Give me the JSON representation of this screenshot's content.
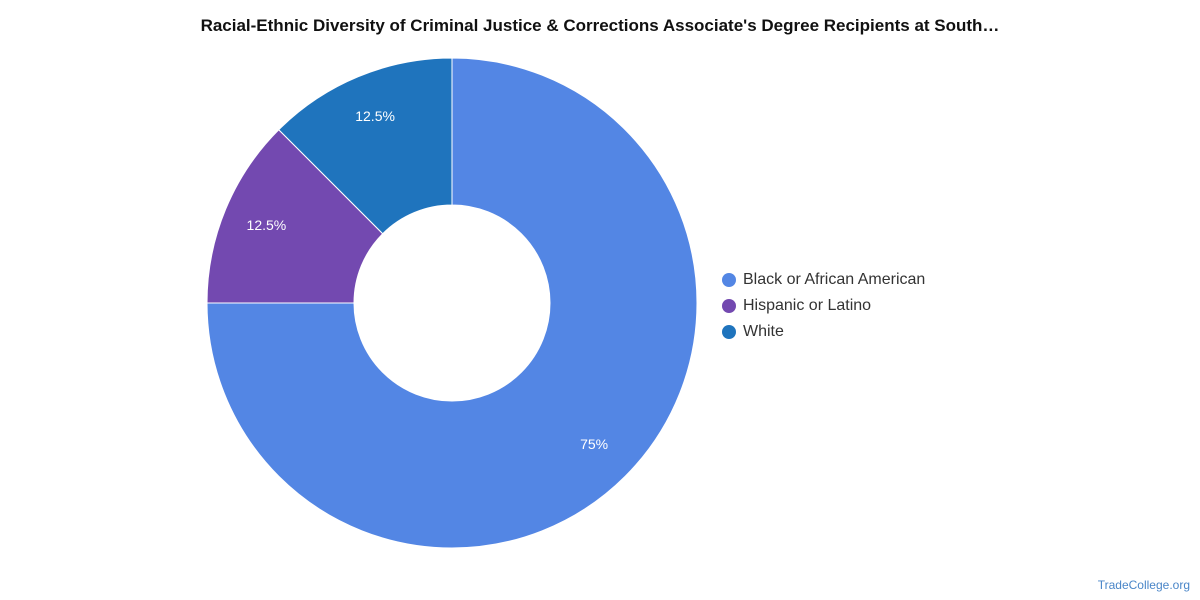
{
  "chart_data": {
    "type": "pie",
    "title": "Racial-Ethnic Diversity of Criminal Justice & Corrections Associate's Degree Recipients at South…",
    "donut": true,
    "legend_position": "right",
    "slices": [
      {
        "label": "Black or African American",
        "value": 75,
        "display": "75%",
        "color": "#5386e4"
      },
      {
        "label": "Hispanic or Latino",
        "value": 12.5,
        "display": "12.5%",
        "color": "#7349b0"
      },
      {
        "label": "White",
        "value": 12.5,
        "display": "12.5%",
        "color": "#1f74bd"
      }
    ]
  },
  "source_label": "TradeCollege.org"
}
